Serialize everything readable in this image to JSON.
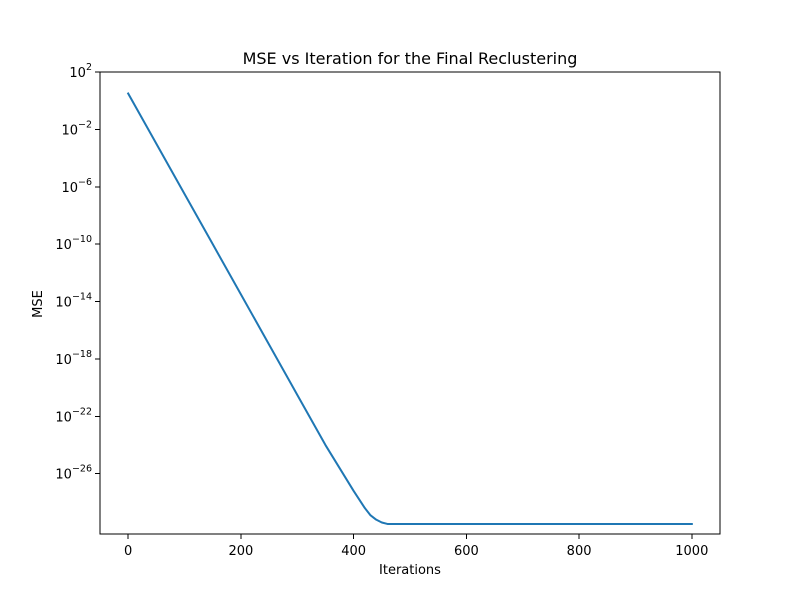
{
  "chart_data": {
    "type": "line",
    "title": "MSE vs Iteration for the Final Reclustering",
    "xlabel": "Iterations",
    "ylabel": "MSE",
    "xscale": "linear",
    "yscale": "log",
    "xlim": [
      -50,
      1050
    ],
    "ylim_log10": [
      -30.2,
      2
    ],
    "xticks": [
      0,
      200,
      400,
      600,
      800,
      1000
    ],
    "xtick_labels": [
      "0",
      "200",
      "400",
      "600",
      "800",
      "1000"
    ],
    "yticks_log10": [
      2,
      -2,
      -6,
      -10,
      -14,
      -18,
      -22,
      -26
    ],
    "ytick_label_base": "10",
    "ytick_label_exponents": [
      "2",
      "−2",
      "−6",
      "−10",
      "−14",
      "−18",
      "−22",
      "−26"
    ],
    "grid": false,
    "legend": "none",
    "series": [
      {
        "color": "#1f77b4",
        "x": [
          0,
          50,
          100,
          150,
          200,
          250,
          300,
          350,
          400,
          420,
          430,
          440,
          450,
          460,
          470,
          500,
          600,
          700,
          800,
          900,
          1000
        ],
        "log10_y": [
          0.5,
          -3.0,
          -6.5,
          -10.0,
          -13.5,
          -17.0,
          -20.5,
          -24.0,
          -27.2,
          -28.4,
          -28.9,
          -29.2,
          -29.4,
          -29.5,
          -29.5,
          -29.5,
          -29.5,
          -29.5,
          -29.5,
          -29.5,
          -29.5
        ]
      }
    ]
  }
}
